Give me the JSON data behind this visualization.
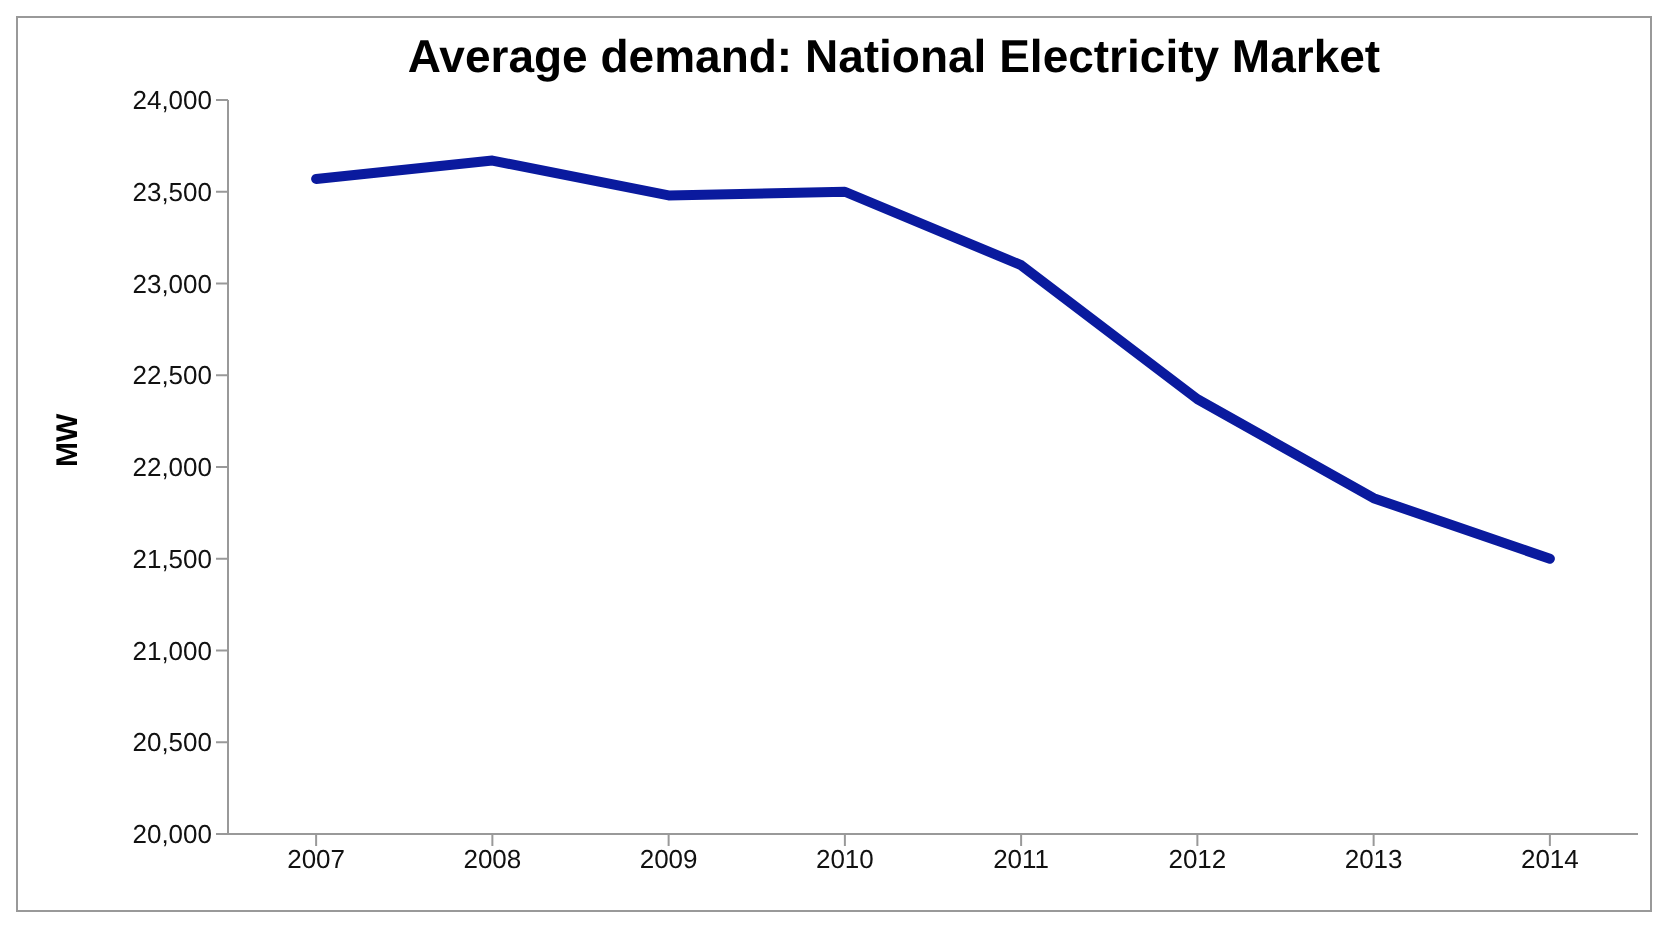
{
  "chart_data": {
    "type": "line",
    "title": "Average demand: National Electricity Market",
    "ylabel": "MW",
    "categories": [
      "2007",
      "2008",
      "2009",
      "2010",
      "2011",
      "2012",
      "2013",
      "2014"
    ],
    "series": [
      {
        "color": "#0a1a9e",
        "values": [
          23570,
          23670,
          23480,
          23500,
          23100,
          22370,
          21830,
          21500
        ]
      }
    ],
    "ylim": [
      20000,
      24000
    ],
    "yticks": [
      {
        "value": 20000,
        "label": "20,000"
      },
      {
        "value": 20500,
        "label": "20,500"
      },
      {
        "value": 21000,
        "label": "21,000"
      },
      {
        "value": 21500,
        "label": "21,500"
      },
      {
        "value": 22000,
        "label": "22,000"
      },
      {
        "value": 22500,
        "label": "22,500"
      },
      {
        "value": 23000,
        "label": "23,000"
      },
      {
        "value": 23500,
        "label": "23,500"
      },
      {
        "value": 24000,
        "label": "24,000"
      }
    ],
    "grid": false,
    "legend": false,
    "marker": "none",
    "line_style": "solid"
  }
}
